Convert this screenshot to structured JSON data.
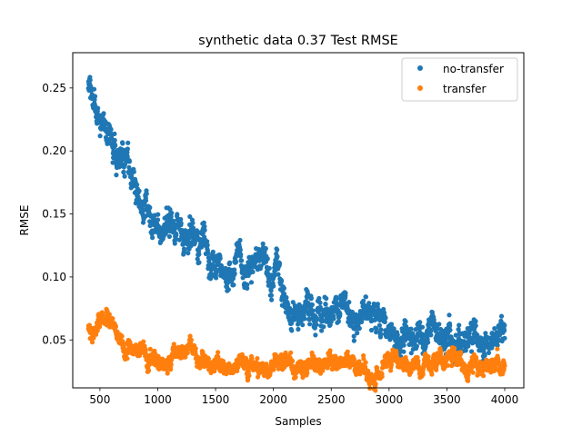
{
  "chart_data": {
    "type": "scatter",
    "title": "synthetic data 0.37 Test RMSE",
    "xlabel": "Samples",
    "ylabel": "RMSE",
    "xlim": [
      265,
      4165
    ],
    "ylim": [
      0.012,
      0.278
    ],
    "xticks": [
      500,
      1000,
      1500,
      2000,
      2500,
      3000,
      3500,
      4000
    ],
    "xtick_labels": [
      "500",
      "1000",
      "1500",
      "2000",
      "2500",
      "3000",
      "3500",
      "4000"
    ],
    "yticks": [
      0.05,
      0.1,
      0.15,
      0.2,
      0.25
    ],
    "ytick_labels": [
      "0.05",
      "0.10",
      "0.15",
      "0.20",
      "0.25"
    ],
    "grid": false,
    "legend_position": "top-right",
    "series": [
      {
        "name": "no-transfer",
        "color": "#1f77b4",
        "x_start": 400,
        "x_end": 4000,
        "trend_x": [
          400,
          430,
          470,
          520,
          560,
          600,
          650,
          700,
          760,
          800,
          850,
          900,
          950,
          1000,
          1100,
          1200,
          1300,
          1400,
          1450,
          1500,
          1600,
          1700,
          1750,
          1800,
          1850,
          1900,
          1950,
          2000,
          2050,
          2100,
          2200,
          2300,
          2400,
          2500,
          2600,
          2700,
          2800,
          2900,
          3000,
          3100,
          3200,
          3300,
          3350,
          3400,
          3450,
          3500,
          3600,
          3700,
          3800,
          3900,
          4000
        ],
        "trend_y": [
          0.25,
          0.24,
          0.228,
          0.222,
          0.22,
          0.215,
          0.203,
          0.197,
          0.175,
          0.168,
          0.16,
          0.15,
          0.145,
          0.143,
          0.145,
          0.138,
          0.132,
          0.125,
          0.11,
          0.102,
          0.105,
          0.112,
          0.108,
          0.115,
          0.125,
          0.122,
          0.118,
          0.11,
          0.095,
          0.083,
          0.075,
          0.078,
          0.072,
          0.075,
          0.077,
          0.068,
          0.07,
          0.06,
          0.062,
          0.055,
          0.052,
          0.058,
          0.07,
          0.062,
          0.048,
          0.05,
          0.045,
          0.05,
          0.048,
          0.046,
          0.047
        ],
        "noise": 0.008
      },
      {
        "name": "transfer",
        "color": "#ff7f0e",
        "x_start": 400,
        "x_end": 4000,
        "trend_x": [
          400,
          450,
          500,
          550,
          600,
          650,
          700,
          800,
          900,
          1000,
          1100,
          1200,
          1250,
          1300,
          1400,
          1500,
          1600,
          1700,
          1800,
          1900,
          2000,
          2100,
          2200,
          2300,
          2400,
          2500,
          2600,
          2700,
          2800,
          2900,
          3000,
          3100,
          3200,
          3300,
          3400,
          3500,
          3600,
          3700,
          3800,
          3900,
          4000
        ],
        "trend_y": [
          0.06,
          0.058,
          0.062,
          0.065,
          0.063,
          0.055,
          0.04,
          0.04,
          0.037,
          0.035,
          0.038,
          0.037,
          0.042,
          0.035,
          0.033,
          0.03,
          0.03,
          0.032,
          0.03,
          0.028,
          0.029,
          0.031,
          0.03,
          0.031,
          0.029,
          0.031,
          0.032,
          0.029,
          0.024,
          0.023,
          0.027,
          0.03,
          0.028,
          0.029,
          0.031,
          0.034,
          0.03,
          0.029,
          0.03,
          0.03,
          0.031
        ],
        "noise": 0.0045
      }
    ]
  }
}
